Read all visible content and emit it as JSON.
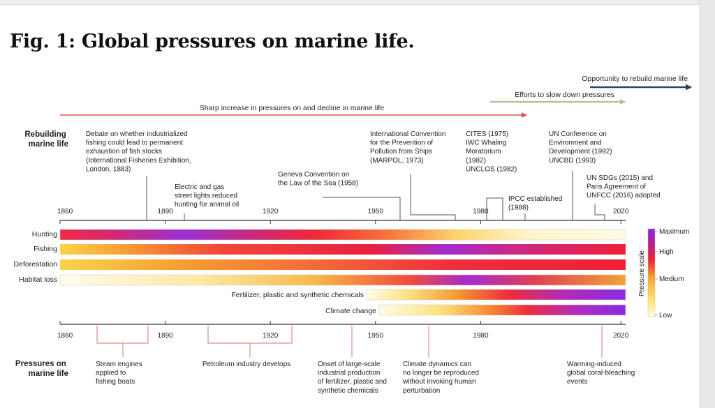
{
  "title": "Fig. 1: Global pressures on marine life.",
  "arrows": {
    "rebuild": "Opportunity to rebuild marine life",
    "slow": "Efforts to slow down pressures",
    "sharp": "Sharp increase in pressures on and decline in marine life"
  },
  "row_titles": {
    "rebuilding": [
      "Rebuilding",
      "marine life"
    ],
    "pressures": [
      "Pressures on",
      "marine life"
    ]
  },
  "top_axis": [
    {
      "year": 1860,
      "label": "1860"
    },
    {
      "year": 1890,
      "label": "1890"
    },
    {
      "year": 1920,
      "label": "1920"
    },
    {
      "year": 1950,
      "label": "1950"
    },
    {
      "year": 1980,
      "label": "1980"
    },
    {
      "year": 2020,
      "label": "2020"
    }
  ],
  "bottom_axis": [
    {
      "year": 1860,
      "label": "1860"
    },
    {
      "year": 1890,
      "label": "1890"
    },
    {
      "year": 1920,
      "label": "1920"
    },
    {
      "year": 1950,
      "label": "1950"
    },
    {
      "year": 1980,
      "label": "1980"
    },
    {
      "year": 2020,
      "label": "2020"
    }
  ],
  "top_events": [
    {
      "id": "debate",
      "lines": [
        "Debate on whether industrialized",
        "fishing could lead to permanent",
        "exhaustion of fish stocks",
        "(International Fisheries Exhibition,",
        "London, 1883)"
      ]
    },
    {
      "id": "lights",
      "lines": [
        "Electric and gas",
        "street lights reduced",
        "hunting for animal oil"
      ]
    },
    {
      "id": "geneva",
      "lines": [
        "Geneva Convention on",
        "the Law of the Sea (1958)"
      ]
    },
    {
      "id": "marpol",
      "lines": [
        "International Convention",
        "for the Prevention of",
        "Pollution from Ships",
        "(MARPOL, 1973)"
      ]
    },
    {
      "id": "cites",
      "lines": [
        "CITES (1975)",
        "IWC Whaling",
        "Moratorium",
        "(1982)",
        "UNCLOS (1982)"
      ]
    },
    {
      "id": "ipcc",
      "lines": [
        "IPCC established",
        "(1988)"
      ]
    },
    {
      "id": "unced",
      "lines": [
        "UN Conference on",
        "Environment and",
        "Development (1992)",
        "UNCBD (1993)"
      ]
    },
    {
      "id": "sdgs",
      "lines": [
        "UN SDGs (2015) and",
        "Paris Agreement of",
        "UNFCC (2016) adopted"
      ]
    }
  ],
  "bottom_events": [
    {
      "id": "steam",
      "lines": [
        "Steam engines",
        "applied to",
        "fishing boats"
      ]
    },
    {
      "id": "petroleum",
      "lines": [
        "Petroleum industry develops"
      ]
    },
    {
      "id": "industrial",
      "lines": [
        "Onset of large-scale",
        "industrial production",
        "of fertilizer, plastic and",
        "synthetic chemicals"
      ]
    },
    {
      "id": "climate",
      "lines": [
        "Climate dynamics can",
        "no longer be reproduced",
        "without invoking human",
        "perturbation"
      ]
    },
    {
      "id": "coral",
      "lines": [
        "Warming-induced",
        "global coral-bleaching",
        "events"
      ]
    }
  ],
  "pressures": [
    {
      "name": "Hunting",
      "start": 1860,
      "end": 2025
    },
    {
      "name": "Fishing",
      "start": 1860,
      "end": 2025
    },
    {
      "name": "Deforestation",
      "start": 1860,
      "end": 2025
    },
    {
      "name": "Habitat loss",
      "start": 1860,
      "end": 2025
    },
    {
      "name": "Fertilizer, plastic and synthetic chemicals",
      "start": 1950,
      "end": 2025
    },
    {
      "name": "Climate change",
      "start": 1955,
      "end": 2025
    }
  ],
  "scale": {
    "title": "Pressure scale",
    "levels": [
      "Maximum",
      "High",
      "Medium",
      "Low"
    ]
  },
  "colors": {
    "sharp_arrow": "#e0505a",
    "slow_arrow": "#b9bd94",
    "rebuild_arrow": "#2e4563",
    "bracket": "#e07070",
    "scale": [
      "#fffbe0",
      "#fde26a",
      "#f7a030",
      "#ee2030",
      "#b020a0",
      "#8a2be2"
    ]
  }
}
